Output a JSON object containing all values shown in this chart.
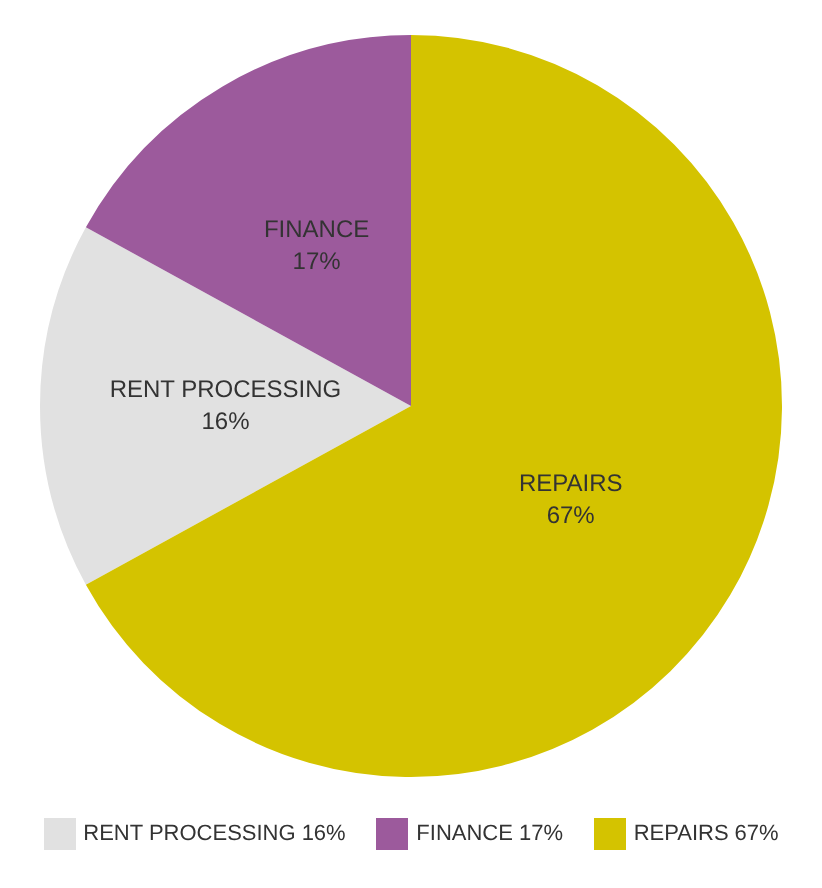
{
  "chart_data": {
    "type": "pie",
    "categories": [
      "RENT PROCESSING",
      "FINANCE",
      "REPAIRS"
    ],
    "values": [
      16,
      17,
      67
    ],
    "value_labels": [
      "16%",
      "17%",
      "67%"
    ],
    "colors": [
      "#e1e1e1",
      "#9c5a9c",
      "#d4c300"
    ],
    "data_labels": true,
    "legend": "bottom"
  }
}
